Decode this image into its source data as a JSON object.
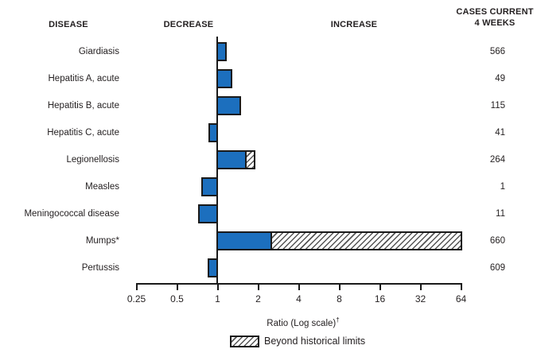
{
  "header": {
    "disease": "DISEASE",
    "decrease": "DECREASE",
    "increase": "INCREASE",
    "cases_line1": "CASES CURRENT",
    "cases_line2": "4 WEEKS"
  },
  "chart_data": {
    "type": "bar",
    "orientation": "horizontal",
    "scale": "log2",
    "baseline_ratio": 1,
    "axis_ticks": [
      0.25,
      0.5,
      1,
      2,
      4,
      8,
      16,
      32,
      64
    ],
    "xlabel": "Ratio (Log scale)",
    "xlabel_superscript": "†",
    "xlim": [
      0.25,
      64
    ],
    "grid": false,
    "legend_position": "bottom",
    "rows": [
      {
        "disease": "Giardiasis",
        "cases": "566",
        "ratio": 1.14,
        "beyond": null
      },
      {
        "disease": "Hepatitis A, acute",
        "cases": "49",
        "ratio": 1.26,
        "beyond": null
      },
      {
        "disease": "Hepatitis B, acute",
        "cases": "115",
        "ratio": 1.47,
        "beyond": null
      },
      {
        "disease": "Hepatitis C, acute",
        "cases": "41",
        "ratio": 0.87,
        "beyond": null
      },
      {
        "disease": "Legionellosis",
        "cases": "264",
        "ratio": 1.62,
        "beyond": 1.87
      },
      {
        "disease": "Measles",
        "cases": "1",
        "ratio": 0.77,
        "beyond": null
      },
      {
        "disease": "Meningococcal disease",
        "cases": "11",
        "ratio": 0.73,
        "beyond": null
      },
      {
        "disease": "Mumps*",
        "cases": "660",
        "ratio": 2.5,
        "beyond": 64
      },
      {
        "disease": "Pertussis",
        "cases": "609",
        "ratio": 0.86,
        "beyond": null
      }
    ],
    "legend": {
      "beyond_label": "Beyond historical limits"
    }
  },
  "colors": {
    "bar_fill": "#1c6fbe",
    "bar_border": "#1a1a1a",
    "text": "#231f20",
    "background": "#ffffff"
  }
}
